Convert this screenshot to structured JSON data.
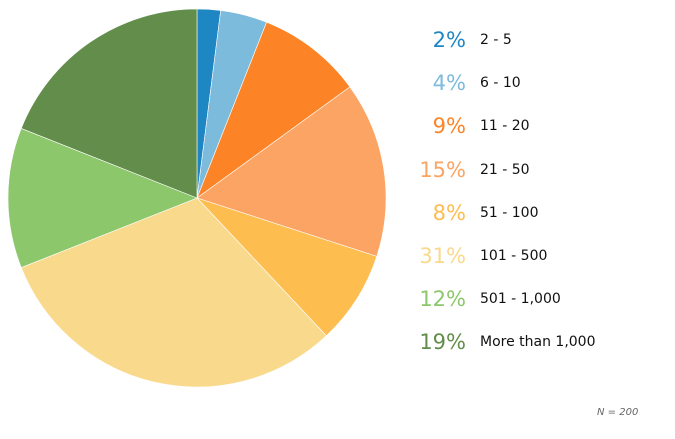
{
  "chart_data": {
    "type": "pie",
    "start_angle_deg": 0,
    "direction": "clockwise",
    "slices": [
      {
        "label": "2 - 5",
        "value": 2,
        "display": "2%",
        "color": "#1f86c4"
      },
      {
        "label": "6 - 10",
        "value": 4,
        "display": "4%",
        "color": "#7dbbdc"
      },
      {
        "label": "11 - 20",
        "value": 9,
        "display": "9%",
        "color": "#fd8426"
      },
      {
        "label": "21 - 50",
        "value": 15,
        "display": "15%",
        "color": "#fba463"
      },
      {
        "label": "51 - 100",
        "value": 8,
        "display": "8%",
        "color": "#fdbd4f"
      },
      {
        "label": "101 - 500",
        "value": 31,
        "display": "31%",
        "color": "#f9d98c"
      },
      {
        "label": "501 - 1,000",
        "value": 12,
        "display": "12%",
        "color": "#8cc76c"
      },
      {
        "label": "More than 1,000",
        "value": 19,
        "display": "19%",
        "color": "#628d4b"
      }
    ],
    "legend_position": "right",
    "note": "N = 200"
  }
}
